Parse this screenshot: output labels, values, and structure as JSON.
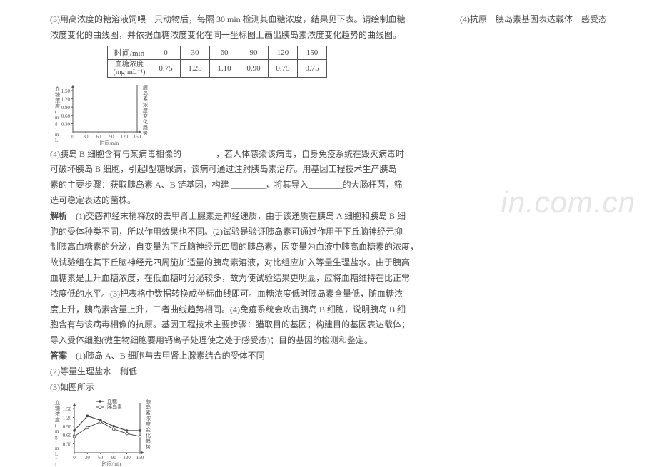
{
  "right_fragment": "(4)抗原　胰岛素基因表达载体　感受态",
  "q3_line1": "(3)用高浓度的糖溶液饲喂一只动物后，每隔 30 min 检测其血糖浓度，结果见下表。请绘制血糖",
  "q3_line2": "浓度变化的曲线图，并依据血糖浓度变化在同一坐标图上画出胰岛素浓度变化趋势的曲线图。",
  "table": {
    "header_time": "时间/min",
    "header_conc1": "血糖浓度",
    "header_conc2": "(mg·mL⁻¹)",
    "times": [
      "0",
      "30",
      "60",
      "90",
      "120",
      "150"
    ],
    "values": [
      "0.75",
      "1.25",
      "1.10",
      "0.90",
      "0.75",
      "0.75"
    ]
  },
  "chart1": {
    "ylabel_lines": [
      "血糖浓度(mg·mL⁻¹)"
    ],
    "yticks": [
      "1.50",
      "1.20",
      "0.90",
      "0.60",
      "0.30"
    ],
    "xticks": [
      "0",
      "30",
      "60",
      "90",
      "120",
      "150"
    ],
    "xlabel": "时间/min",
    "right_label": "胰岛素浓度变化趋势",
    "axis_color": "#555",
    "width": 150,
    "height": 90
  },
  "q4_line1": "(4)胰岛 B 细胞含有与某病毒相像的________，若人体感染该病毒，自身免疫系统在毁灭病毒时",
  "q4_line2": "可破坏胰岛 B 细胞，引起Ⅰ型糖尿病，该病可通过注射胰岛素治疗。用基因工程技术生产胰岛",
  "q4_line3": "素的主要步骤：获取胰岛素 A、B 链基因，构建 ________，将其导入________的大肠杆菌，筛",
  "q4_line4": "选可稳定表达的菌株。",
  "ans_head": "解析",
  "ans_p1": "　(1)交感神经末梢释放的去甲肾上腺素是神经递质，由于该递质在胰岛 A 细胞和胰岛 B 细",
  "ans_p2": "胞的受体种类不同，所以作用效果也不同。(2)试验是验证胰岛素可通过作用于下丘脑神经元抑",
  "ans_p3": "制胰高血糖素的分泌，自变量为下丘脑神经元四周的胰岛素，因变量为血液中胰高血糖素的浓度，",
  "ans_p4": "故试验组在其下丘脑神经元四周施加适量的胰岛素溶液，对比组应加入等量生理盐水。由于胰高",
  "ans_p5": "血糖素是上升血糖浓度，在低血糖时分泌较多，故为使试验结果更明显，应将血糖维持在比正常",
  "ans_p6": "浓度低的水平。(3)把表格中数据转换成坐标曲线即可。血糖浓度低时胰岛素含量低，随血糖浓",
  "ans_p7": "度上升，胰岛素含量上升，二者曲线趋势相同。(4)免疫系统会攻击胰岛 B 细胞，说明胰岛 B 细",
  "ans_p8": "胞含有与该病毒相像的抗原。基因工程技术主要步骤：猎取目的基因；构建目的基因表达载体；",
  "ans_p9": "导入受体细胞(微生物细胞要用钙离子处理使之处于感受态)；目的基因的检测和鉴定。",
  "final_head": "答案",
  "final_1": "　(1)胰岛 A、B 细胞与去甲肾上腺素结合的受体不同",
  "final_2": "(2)等量生理盐水　稍低",
  "final_3": "(3)如图所示",
  "chart2": {
    "legend_glucose": "血糖",
    "legend_insulin": "胰岛素",
    "ylabel": "血糖浓度(mg·mL⁻¹)",
    "yticks": [
      "1.50",
      "1.20",
      "0.90",
      "0.60",
      "0.30"
    ],
    "xticks": [
      "0",
      "30",
      "60",
      "90",
      "120",
      "150"
    ],
    "xlabel": "时间/min",
    "right_label": "胰岛素浓度变化趋势",
    "glucose_points": [
      [
        0,
        0.75
      ],
      [
        30,
        1.25
      ],
      [
        60,
        1.1
      ],
      [
        90,
        0.9
      ],
      [
        120,
        0.75
      ],
      [
        150,
        0.75
      ]
    ],
    "insulin_points": [
      [
        0,
        0.55
      ],
      [
        30,
        0.85
      ],
      [
        60,
        1.05
      ],
      [
        90,
        0.8
      ],
      [
        120,
        0.65
      ],
      [
        150,
        0.55
      ]
    ],
    "x_range": [
      0,
      150
    ],
    "y_range": [
      0,
      1.5
    ],
    "width": 150,
    "height": 95,
    "axis_color": "#555"
  }
}
